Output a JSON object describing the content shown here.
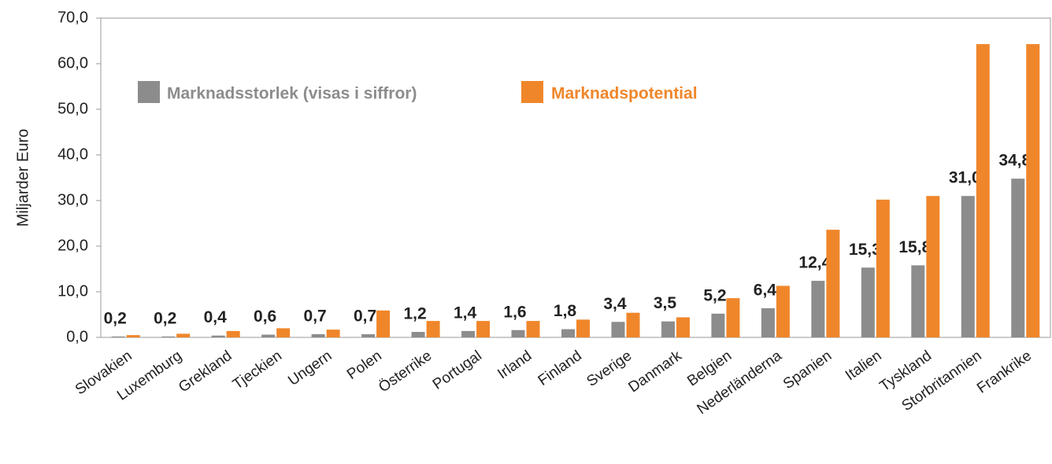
{
  "chart_data": {
    "type": "bar",
    "y_label": "Miljarder Euro",
    "categories": [
      "Slovakien",
      "Luxemburg",
      "Grekland",
      "Tjeckien",
      "Ungern",
      "Polen",
      "Österrike",
      "Portugal",
      "Irland",
      "Finland",
      "Sverige",
      "Danmark",
      "Belgien",
      "Nederländerna",
      "Spanien",
      "Italien",
      "Tyskland",
      "Storbritannien",
      "Frankrike"
    ],
    "series": [
      {
        "name": "Marknadsstorlek (visas i siffror)",
        "color": "#8c8c8c",
        "values": [
          0.2,
          0.2,
          0.4,
          0.6,
          0.7,
          0.7,
          1.2,
          1.4,
          1.6,
          1.8,
          3.4,
          3.5,
          5.2,
          6.4,
          12.4,
          15.3,
          15.8,
          31.0,
          34.8
        ],
        "value_labels": [
          "0,2",
          "0,2",
          "0,4",
          "0,6",
          "0,7",
          "0,7",
          "1,2",
          "1,4",
          "1,6",
          "1,8",
          "3,4",
          "3,5",
          "5,2",
          "6,4",
          "12,4",
          "15,3",
          "15,8",
          "31,0",
          "34,8"
        ]
      },
      {
        "name": "Marknadspotential",
        "color": "#f0862a",
        "values": [
          0.5,
          0.8,
          1.4,
          2.0,
          1.7,
          5.9,
          3.6,
          3.6,
          3.6,
          3.9,
          5.4,
          4.4,
          8.6,
          11.3,
          23.6,
          30.2,
          31.0,
          64.3,
          64.3
        ]
      }
    ],
    "ylim": [
      0,
      70
    ],
    "yticks": [
      {
        "value": 0,
        "label": "0,0"
      },
      {
        "value": 10,
        "label": "10,0"
      },
      {
        "value": 20,
        "label": "20,0"
      },
      {
        "value": 30,
        "label": "30,0"
      },
      {
        "value": 40,
        "label": "40,0"
      },
      {
        "value": 50,
        "label": "50,0"
      },
      {
        "value": 60,
        "label": "60,0"
      },
      {
        "value": 70,
        "label": "70,0"
      }
    ],
    "grid": false
  }
}
